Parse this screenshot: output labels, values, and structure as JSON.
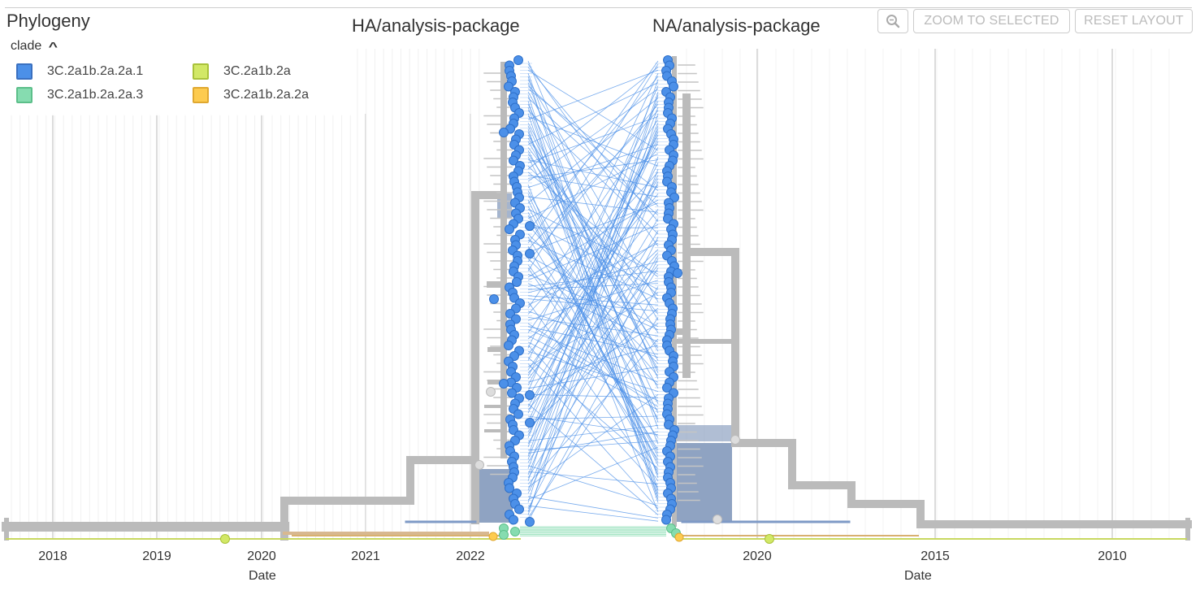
{
  "panel": {
    "title": "Phylogeny"
  },
  "legend": {
    "toggle_label": "clade",
    "toggle_icon": "chevron-up-icon",
    "items": [
      {
        "label": "3C.2a1b.2a.2a.1",
        "color": "#4c90e8",
        "border": "#3a70c0"
      },
      {
        "label": "3C.2a1b.2a.2a.3",
        "color": "#86dcb0",
        "border": "#5cbf8a"
      },
      {
        "label": "3C.2a1b.2a",
        "color": "#d2e866",
        "border": "#a9c23a"
      },
      {
        "label": "3C.2a1b.2a.2a",
        "color": "#fdcb4f",
        "border": "#e0a830"
      }
    ]
  },
  "trees": {
    "left_title": "HA/analysis-package",
    "right_title": "NA/analysis-package"
  },
  "toolbar": {
    "zoom_icon": "zoom-out-icon",
    "zoom_selected_label": "ZOOM TO SELECTED",
    "reset_layout_label": "RESET LAYOUT"
  },
  "axes": {
    "left": {
      "label": "Date",
      "ticks": [
        "2018",
        "2019",
        "2020",
        "2021",
        "2022"
      ]
    },
    "right": {
      "label": "Date",
      "ticks": [
        "2020",
        "2015",
        "2010"
      ]
    }
  },
  "colors": {
    "branch_gray": "#bbbbbb",
    "tip_blue": "#4c90e8",
    "tanglegram_line": "#4c90e8",
    "grid": "#e6e6e6",
    "shaded_block": "#8fa3c2"
  }
}
